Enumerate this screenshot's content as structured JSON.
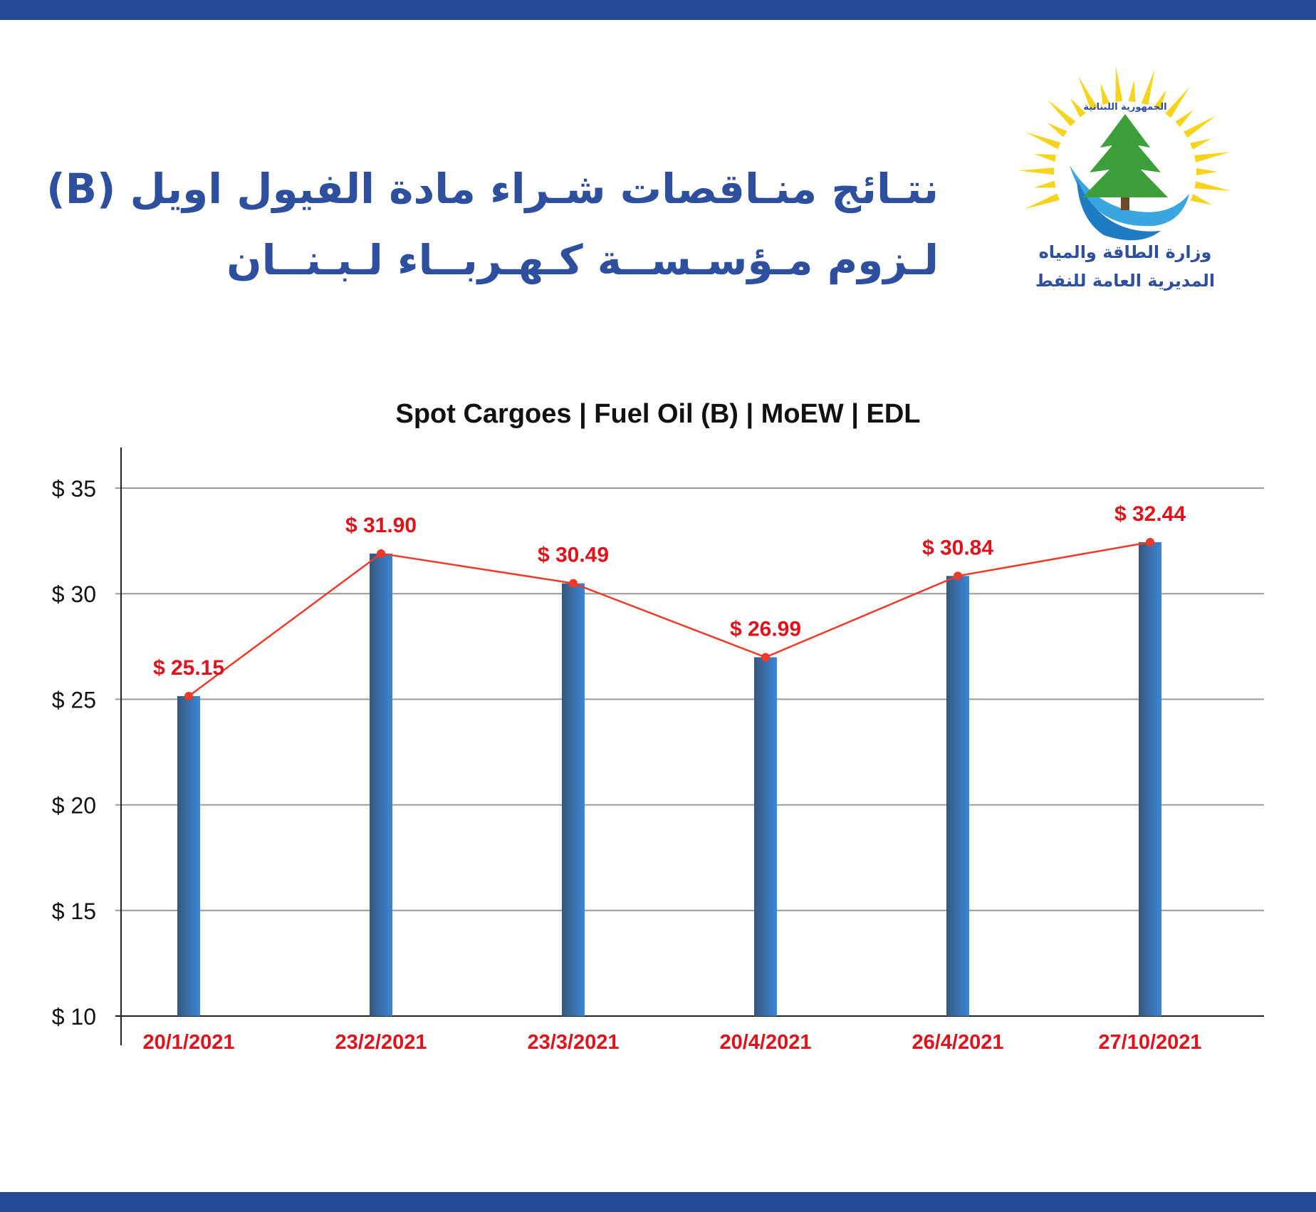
{
  "header": {
    "title_line1": "نتـائج منـاقصات شـراء مادة الفيول اويل (B)",
    "title_line2": "لـزوم مـؤسـســة كـهـربــاء لـبـنــان"
  },
  "logo": {
    "top_text": "الجمهورية اللبنانية",
    "ministry_text": "وزارة الطاقة والمياه",
    "subtitle": "المديرية العامة للنفط",
    "icon": "cedar-sun-logo-icon"
  },
  "colors": {
    "band": "#254a97",
    "bar_light": "#3d86d6",
    "bar_dark": "#35587e",
    "line": "#ee3a2a",
    "label_red": "#e0121c",
    "grid": "#9a9a9a"
  },
  "chart_data": {
    "type": "bar",
    "title": "Spot Cargoes | Fuel Oil (B) | MoEW | EDL",
    "categories": [
      "20/1/2021",
      "23/2/2021",
      "23/3/2021",
      "20/4/2021",
      "26/4/2021",
      "27/10/2021"
    ],
    "series": [
      {
        "values": [
          25.15,
          31.9,
          30.49,
          26.99,
          30.84,
          32.44
        ]
      }
    ],
    "data_labels": [
      "$ 25.15",
      "$ 31.90",
      "$ 30.49",
      "$ 26.99",
      "$ 30.84",
      "$ 32.44"
    ],
    "overlay": "line",
    "ylim": [
      10,
      35
    ],
    "yticks": [
      10,
      15,
      20,
      25,
      30,
      35
    ],
    "ytick_labels": [
      "$ 10",
      "$ 15",
      "$ 20",
      "$ 25",
      "$ 30",
      "$ 35"
    ],
    "grid": true
  }
}
